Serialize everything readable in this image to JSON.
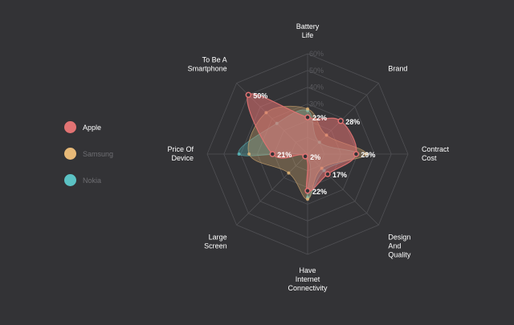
{
  "chart_data": {
    "type": "radar",
    "title": "",
    "axes": [
      [
        "Battery",
        "Life"
      ],
      [
        "Brand"
      ],
      [
        "Contract",
        "Cost"
      ],
      [
        "Design",
        "And",
        "Quality"
      ],
      [
        "Have",
        "Internet",
        "Connectivity"
      ],
      [
        "Large",
        "Screen"
      ],
      [
        "Price Of",
        "Device"
      ],
      [
        "To Be A",
        "Smartphone"
      ]
    ],
    "range": [
      0,
      60
    ],
    "ticks": [
      "30%",
      "40%",
      "50%",
      "60%"
    ],
    "grid": true,
    "legend_placement": "left",
    "series": [
      {
        "name": "Apple",
        "color": "#e27373",
        "values": [
          22,
          28,
          29,
          17,
          22,
          2,
          21,
          50
        ],
        "labels": [
          "22%",
          "28%",
          "29%",
          "17%",
          "22%",
          "2%",
          "21%",
          "50%"
        ]
      },
      {
        "name": "Samsung",
        "color": "#e7b978",
        "values": [
          27,
          16,
          35,
          12,
          27,
          16,
          35,
          35
        ]
      },
      {
        "name": "Nokia",
        "color": "#5bc2c4",
        "values": [
          26,
          10,
          30,
          14,
          26,
          2,
          41,
          26
        ]
      }
    ]
  },
  "legend": {
    "items": [
      {
        "label": "Apple",
        "color": "#e27373",
        "text_color": "#ffffff"
      },
      {
        "label": "Samsung",
        "color": "#e7b978",
        "text_color": "#6e6e72"
      },
      {
        "label": "Nokia",
        "color": "#5bc2c4",
        "text_color": "#6e6e72"
      }
    ]
  },
  "colors": {
    "background": "#333336",
    "grid": "#505054"
  }
}
